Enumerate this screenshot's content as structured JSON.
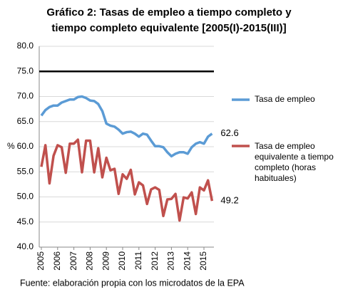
{
  "chart_data": {
    "type": "line",
    "title": [
      "Gráfico 2: Tasas de empleo a tiempo completo y",
      "tiempo completo equivalente [2005(I)-2015(III)]"
    ],
    "y_label": "%",
    "source": "Fuente: elaboración propia con los microdatos de la EPA",
    "categories": [
      "2005",
      null,
      null,
      null,
      "2006",
      null,
      null,
      null,
      "2007",
      null,
      null,
      null,
      "2008",
      null,
      null,
      null,
      "2009",
      null,
      null,
      null,
      "2010",
      null,
      null,
      null,
      "2011",
      null,
      null,
      null,
      "2012",
      null,
      null,
      null,
      "2013",
      null,
      null,
      null,
      "2014",
      null,
      null,
      null,
      "2015",
      null,
      null
    ],
    "series": [
      {
        "name": "Tasa de empleo",
        "color": "#5b9bd5",
        "values": [
          66.2,
          67.3,
          67.9,
          68.2,
          68.2,
          68.8,
          69.1,
          69.4,
          69.4,
          69.9,
          70.0,
          69.7,
          69.2,
          69.1,
          68.5,
          67.1,
          64.6,
          64.2,
          64.0,
          63.4,
          62.6,
          62.9,
          63.0,
          62.6,
          62.0,
          62.6,
          62.4,
          61.2,
          60.1,
          60.1,
          59.9,
          58.9,
          58.1,
          58.6,
          58.9,
          58.9,
          58.6,
          59.9,
          60.6,
          60.9,
          60.6,
          62.0,
          62.6
        ]
      },
      {
        "name": "Tasa de empleo equivalente a tiempo completo (horas habituales)",
        "color": "#c0504d",
        "values": [
          56.0,
          60.3,
          52.7,
          58.2,
          60.3,
          59.9,
          54.8,
          60.6,
          60.6,
          61.4,
          54.9,
          61.2,
          61.2,
          54.9,
          59.7,
          53.9,
          57.8,
          55.3,
          55.6,
          50.6,
          54.5,
          53.6,
          55.4,
          50.5,
          52.9,
          52.3,
          48.6,
          51.5,
          51.9,
          51.4,
          46.2,
          49.5,
          49.6,
          50.6,
          45.3,
          49.9,
          49.7,
          50.9,
          46.6,
          51.9,
          51.3,
          53.3,
          49.2
        ]
      }
    ],
    "reference_line": {
      "value": 75,
      "color": "#000000"
    },
    "ylim": [
      40,
      80
    ],
    "yticks": [
      {
        "value": 40,
        "label": "40.0"
      },
      {
        "value": 45,
        "label": "45.0"
      },
      {
        "value": 50,
        "label": "50.0"
      },
      {
        "value": 55,
        "label": "55.0"
      },
      {
        "value": 60,
        "label": "60.0"
      },
      {
        "value": 65,
        "label": "65.0"
      },
      {
        "value": 70,
        "label": "70.0"
      },
      {
        "value": 75,
        "label": "75.0"
      },
      {
        "value": 80,
        "label": "80.0"
      }
    ],
    "grid": true
  }
}
